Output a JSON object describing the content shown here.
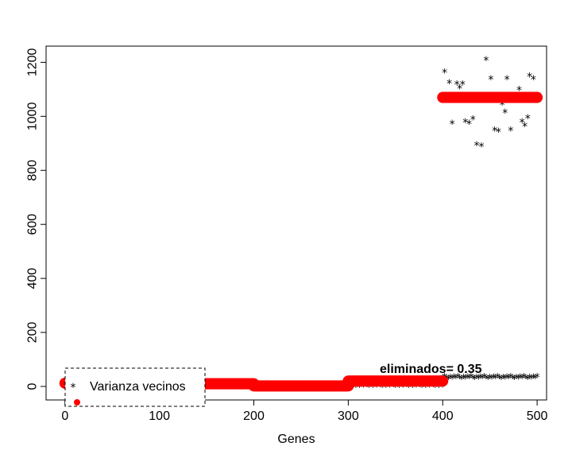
{
  "chart_data": {
    "type": "scatter",
    "xlabel": "Genes",
    "ylabel": "",
    "xlim": [
      -20,
      510
    ],
    "ylim": [
      -50,
      1260
    ],
    "xticks": [
      0,
      100,
      200,
      300,
      400,
      500
    ],
    "yticks": [
      0,
      200,
      400,
      600,
      800,
      1000,
      1200
    ],
    "grid": false,
    "legend": {
      "placement": "bottom-left",
      "entries": [
        {
          "label": "Varianza vecinos",
          "marker": "*",
          "color": "#000000"
        },
        {
          "label": "",
          "marker": "circle",
          "color": "#ff0000"
        }
      ]
    },
    "annotation": {
      "text": "eliminados= 0.35",
      "x": 400,
      "y": 55
    },
    "series": [
      {
        "marker": "circle",
        "color": "#ff0000",
        "segments": [
          {
            "x_start": 0,
            "x_end": 100,
            "y": 12
          },
          {
            "x_start": 100,
            "x_end": 200,
            "y": 10
          },
          {
            "x_start": 200,
            "x_end": 300,
            "y": 2
          },
          {
            "x_start": 300,
            "x_end": 400,
            "y": 20
          },
          {
            "x_start": 400,
            "x_end": 500,
            "y": 1070
          }
        ]
      },
      {
        "marker": "*",
        "color": "#000000",
        "segments": [
          {
            "x_start": 300,
            "x_end": 400,
            "y": 3
          },
          {
            "x_start": 400,
            "x_end": 500,
            "y": 33
          }
        ],
        "points": [
          [
            400,
            1065
          ],
          [
            402,
            1165
          ],
          [
            407,
            1125
          ],
          [
            410,
            975
          ],
          [
            415,
            1120
          ],
          [
            418,
            1105
          ],
          [
            421,
            1120
          ],
          [
            424,
            980
          ],
          [
            428,
            975
          ],
          [
            432,
            990
          ],
          [
            436,
            895
          ],
          [
            441,
            890
          ],
          [
            446,
            1210
          ],
          [
            451,
            1140
          ],
          [
            455,
            950
          ],
          [
            459,
            945
          ],
          [
            463,
            1045
          ],
          [
            466,
            1015
          ],
          [
            468,
            1140
          ],
          [
            472,
            950
          ],
          [
            476,
            1060
          ],
          [
            481,
            1100
          ],
          [
            484,
            980
          ],
          [
            487,
            965
          ],
          [
            490,
            995
          ],
          [
            492,
            1150
          ],
          [
            496,
            1140
          ],
          [
            499,
            1070
          ]
        ]
      }
    ]
  },
  "x_tick_labels": [
    "0",
    "100",
    "200",
    "300",
    "400",
    "500"
  ],
  "y_tick_labels": [
    "0",
    "200",
    "400",
    "600",
    "800",
    "1000",
    "1200"
  ],
  "xlabel": "Genes",
  "legend_label_1": "Varianza vecinos",
  "annotation_text": "eliminados= 0.35"
}
